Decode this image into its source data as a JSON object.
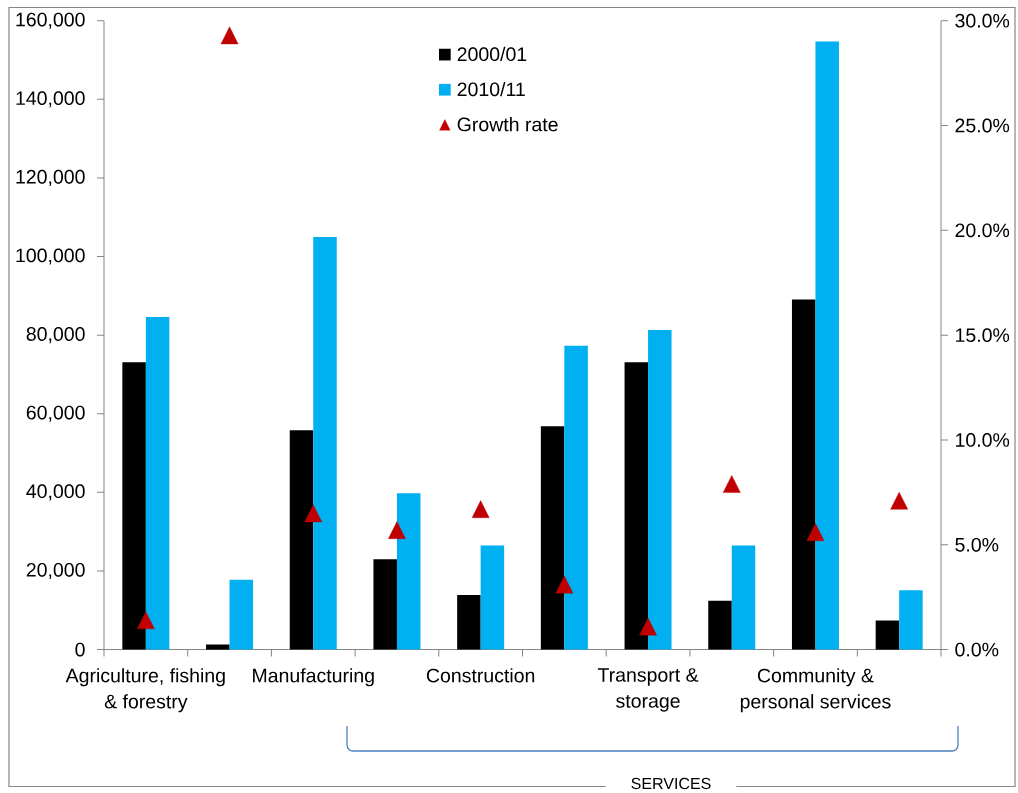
{
  "chart_data": {
    "type": "bar",
    "categories": [
      "Agriculture, fishing & forestry",
      null,
      "Manufacturing",
      null,
      "Construction",
      null,
      "Transport & storage",
      null,
      "Community & personal services",
      null
    ],
    "series": [
      {
        "name": "2000/01",
        "color": "#000000",
        "values": [
          73100,
          1300,
          55800,
          23000,
          13900,
          56800,
          73100,
          12400,
          89100,
          7400
        ]
      },
      {
        "name": "2010/11",
        "color": "#00b0f0",
        "values": [
          84600,
          17800,
          105000,
          39800,
          26500,
          77300,
          81300,
          26500,
          154700,
          15100
        ]
      },
      {
        "name": "Growth rate",
        "type": "scatter",
        "axis": "y2",
        "color": "#c00000",
        "values": [
          1.4,
          29.3,
          6.5,
          5.7,
          6.7,
          3.1,
          1.1,
          7.9,
          5.6,
          7.1
        ]
      }
    ],
    "ylim": [
      0,
      160000
    ],
    "yticks": [
      0,
      {
        "value": 20000,
        "label": "20,000"
      },
      {
        "value": 40000,
        "label": "40,000"
      },
      {
        "value": 60000,
        "label": "60,000"
      },
      {
        "value": 80000,
        "label": "80,000"
      },
      {
        "value": 100000,
        "label": "100,000"
      },
      {
        "value": 120000,
        "label": "120,000"
      },
      {
        "value": 140000,
        "label": "140,000"
      },
      {
        "value": 160000,
        "label": "160,000"
      }
    ],
    "y2lim": [
      0,
      30
    ],
    "y2ticks": [
      {
        "value": 0,
        "label": "0.0%"
      },
      {
        "value": 5,
        "label": "5.0%"
      },
      {
        "value": 10,
        "label": "10.0%"
      },
      {
        "value": 15,
        "label": "15.0%"
      },
      {
        "value": 20,
        "label": "20.0%"
      },
      {
        "value": 25,
        "label": "25.0%"
      },
      {
        "value": 30,
        "label": "30.0%"
      }
    ],
    "legend": "top",
    "marker": "triangle",
    "annotations": [
      "SERVICES"
    ]
  }
}
